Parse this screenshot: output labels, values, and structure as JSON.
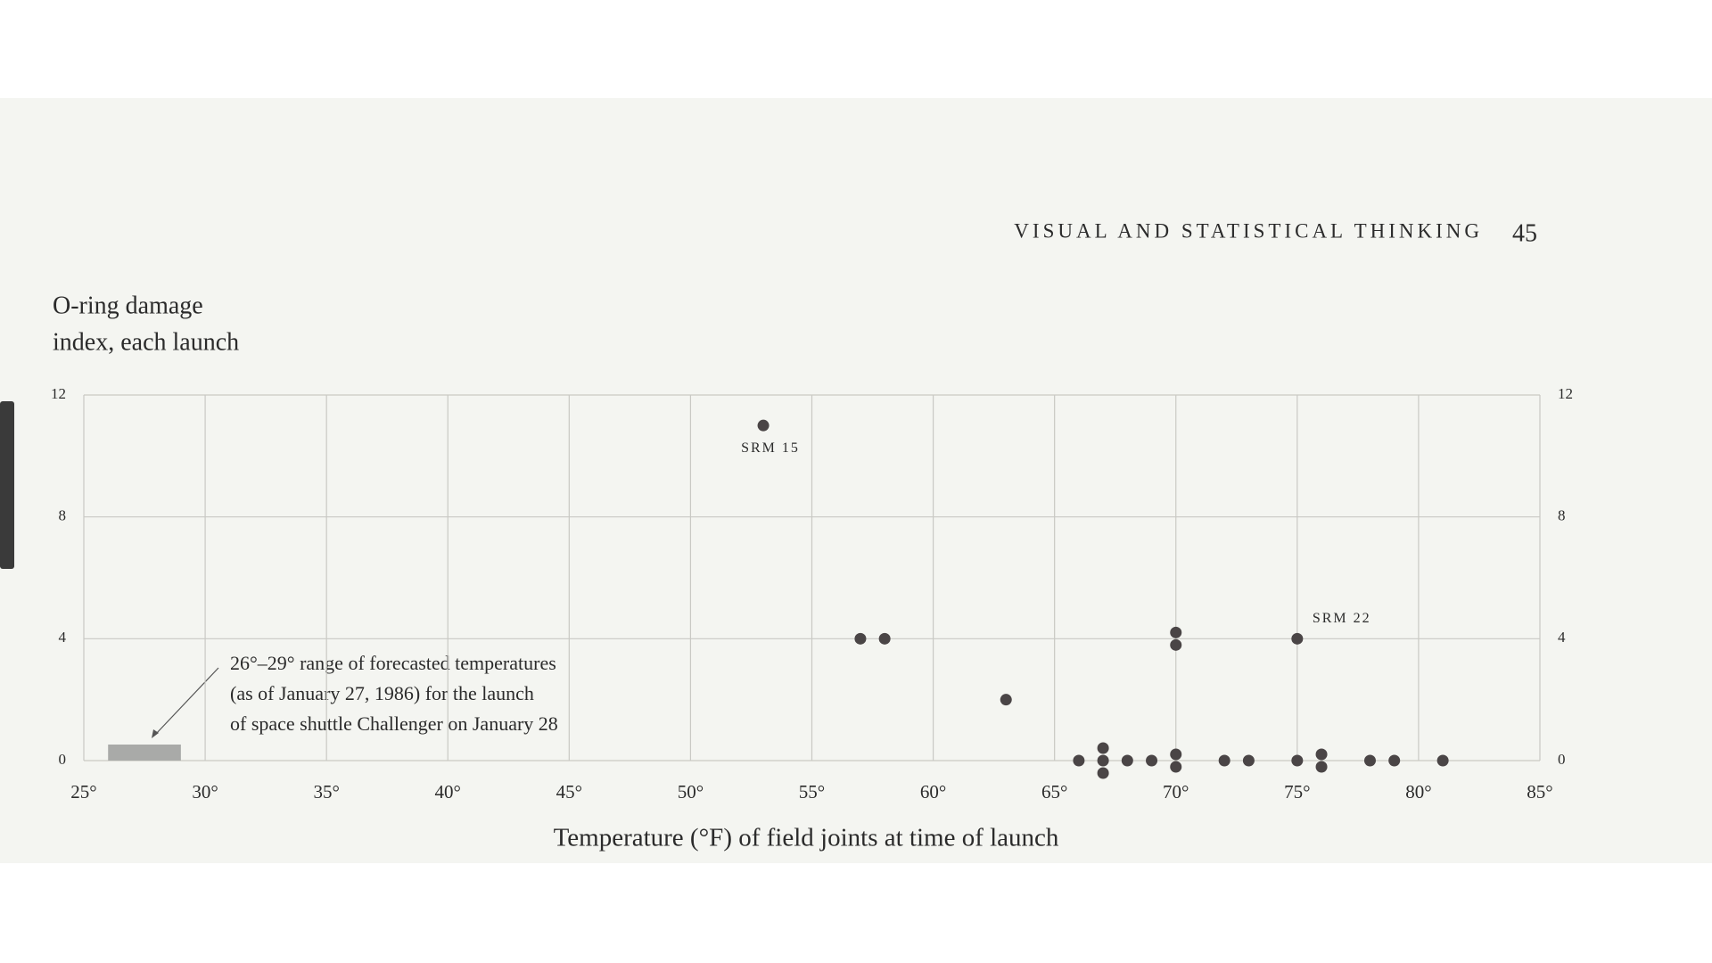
{
  "header": {
    "title": "VISUAL AND STATISTICAL THINKING",
    "page_number": "45"
  },
  "chart_data": {
    "type": "scatter",
    "y_label": [
      "O-ring damage",
      "index, each launch"
    ],
    "x_label": "Temperature (°F) of field joints at time of launch",
    "x": [
      53,
      57,
      58,
      63,
      70,
      70,
      75,
      66,
      67,
      67,
      67,
      68,
      69,
      70,
      70,
      72,
      73,
      75,
      76,
      76,
      78,
      79,
      81
    ],
    "values": [
      11,
      4,
      4,
      2,
      4,
      4,
      4,
      0,
      0,
      0,
      0,
      0,
      0,
      0,
      0,
      0,
      0,
      0,
      0,
      0,
      0,
      0,
      0
    ],
    "point_labels": [
      "SRM 15",
      null,
      null,
      null,
      null,
      null,
      "SRM 22",
      null,
      null,
      null,
      null,
      null,
      null,
      null,
      null,
      null,
      null,
      null,
      null,
      null,
      null,
      null,
      null
    ],
    "color": "#4a4546",
    "xlim": [
      25,
      85
    ],
    "ylim": [
      0,
      12
    ],
    "xticks": [
      {
        "value": 25,
        "label": "25°"
      },
      {
        "value": 30,
        "label": "30°"
      },
      {
        "value": 35,
        "label": "35°"
      },
      {
        "value": 40,
        "label": "40°"
      },
      {
        "value": 45,
        "label": "45°"
      },
      {
        "value": 50,
        "label": "50°"
      },
      {
        "value": 55,
        "label": "55°"
      },
      {
        "value": 60,
        "label": "60°"
      },
      {
        "value": 65,
        "label": "65°"
      },
      {
        "value": 70,
        "label": "70°"
      },
      {
        "value": 75,
        "label": "75°"
      },
      {
        "value": 80,
        "label": "80°"
      },
      {
        "value": 85,
        "label": "85°"
      }
    ],
    "yticks": [
      0,
      4,
      8,
      12
    ],
    "grid": true,
    "forecast_range": [
      26,
      29
    ],
    "forecast_color": "#a9aaa8",
    "annotation": [
      "26°–29° range of forecasted temperatures",
      "(as of January 27, 1986) for the launch",
      "of space shuttle Challenger on January 28"
    ]
  }
}
